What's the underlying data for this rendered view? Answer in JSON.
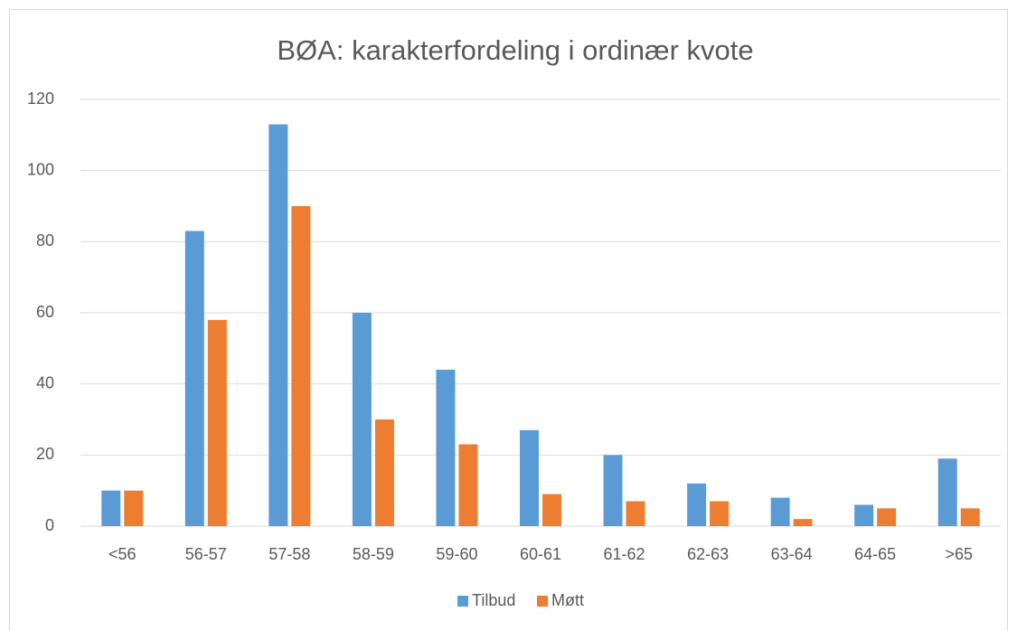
{
  "chart_data": {
    "type": "bar",
    "title": "BØA: karakterfordeling i ordinær kvote",
    "categories": [
      "<56",
      "56-57",
      "57-58",
      "58-59",
      "59-60",
      "60-61",
      "61-62",
      "62-63",
      "63-64",
      "64-65",
      ">65"
    ],
    "series": [
      {
        "name": "Tilbud",
        "color": "#5b9bd5",
        "values": [
          10,
          83,
          113,
          60,
          44,
          27,
          20,
          12,
          8,
          6,
          19
        ]
      },
      {
        "name": "Møtt",
        "color": "#ed7d31",
        "values": [
          10,
          58,
          90,
          30,
          23,
          9,
          7,
          7,
          2,
          5,
          5
        ]
      }
    ],
    "ylim": [
      0,
      120
    ],
    "yticks": [
      0,
      20,
      40,
      60,
      80,
      100,
      120
    ],
    "grid": true,
    "legend": "bottom"
  }
}
